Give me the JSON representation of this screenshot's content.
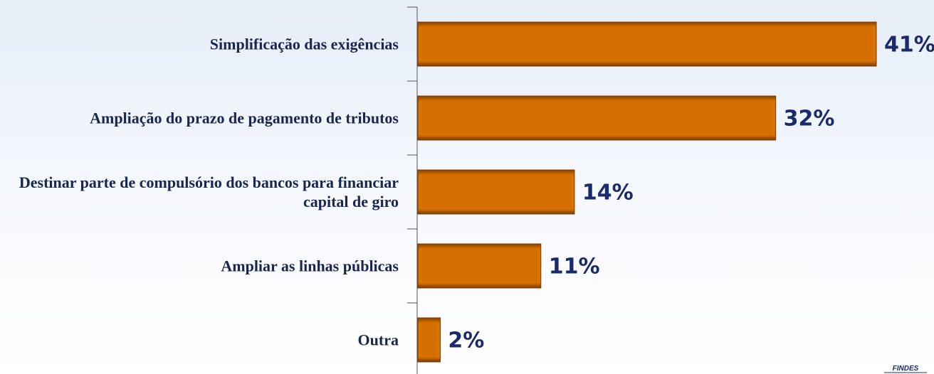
{
  "chart_data": {
    "type": "bar",
    "orientation": "horizontal",
    "categories": [
      "Simplificação das exigências",
      "Ampliação do prazo de pagamento de tributos",
      "Destinar parte de compulsório dos bancos para financiar capital de giro",
      "Ampliar as linhas públicas",
      "Outra"
    ],
    "values": [
      41,
      32,
      14,
      11,
      2
    ],
    "value_labels": [
      "41%",
      "32%",
      "14%",
      "11%",
      "2%"
    ],
    "color": "#d46e00"
  },
  "logo": "FINDES"
}
